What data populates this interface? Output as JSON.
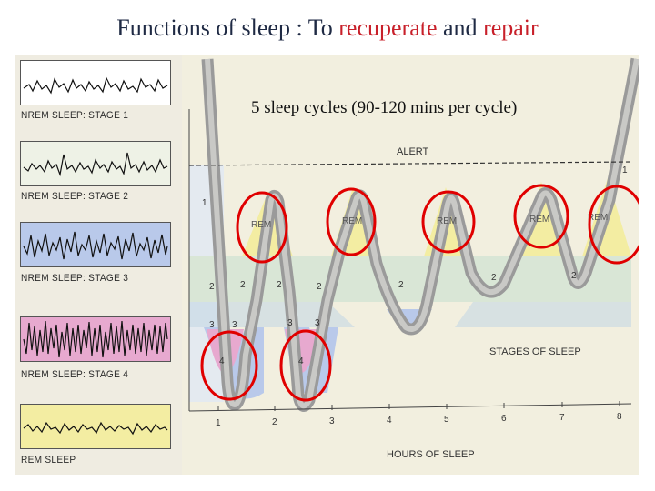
{
  "title": {
    "part1": "Functions of sleep : To ",
    "part2": "recuperate",
    "part3": " and ",
    "part4": "repair"
  },
  "subtitle": "5 sleep cycles (90-120 mins per cycle)",
  "eeg_panels": [
    {
      "label": "NREM SLEEP: STAGE 1",
      "color": "#ffffff"
    },
    {
      "label": "NREM SLEEP: STAGE 2",
      "color": "#eef2e6"
    },
    {
      "label": "NREM SLEEP: STAGE 3",
      "color": "#b9c9ea"
    },
    {
      "label": "NREM SLEEP: STAGE 4",
      "color": "#e7a9cf"
    },
    {
      "label": "REM SLEEP",
      "color": "#f3eda2"
    }
  ],
  "diagram": {
    "alert_label": "ALERT",
    "stages_label": "STAGES OF SLEEP",
    "hours_label": "HOURS OF SLEEP",
    "hour_ticks": [
      "1",
      "2",
      "3",
      "4",
      "5",
      "6",
      "7",
      "8"
    ],
    "stage_numbers": [
      "1",
      "2",
      "2",
      "3",
      "3",
      "4",
      "2",
      "3",
      "3",
      "4",
      "2",
      "2",
      "2",
      "2",
      "1"
    ],
    "rem_labels": [
      "REM",
      "REM",
      "REM",
      "REM",
      "REM"
    ],
    "colors": {
      "rem": "#f3eda2",
      "stage2": "#d9e6d6",
      "stage3": "#b9c9ea",
      "stage4": "#e7a9cf",
      "circle": "#e00000",
      "curve": "#9a9a9a"
    }
  }
}
